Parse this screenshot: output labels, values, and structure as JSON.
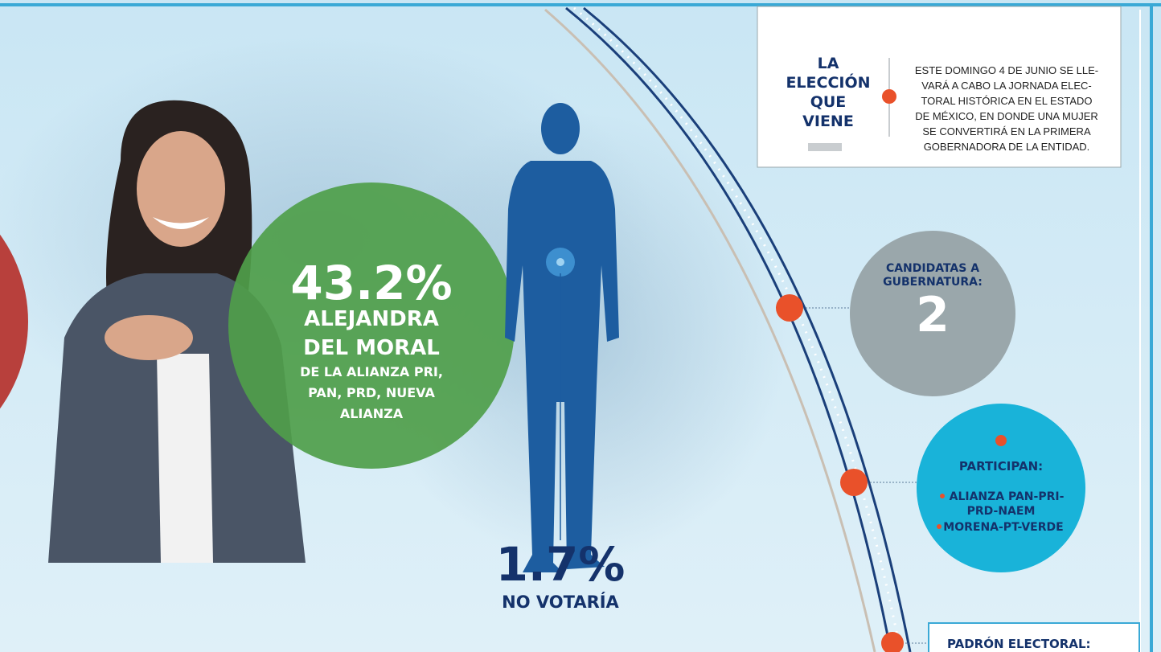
{
  "info_box": {
    "title_lines": [
      "LA",
      "ELECCIÓN",
      "QUE",
      "VIENE"
    ],
    "text_lines": [
      "ESTE DOMINGO 4 DE JUNIO SE LLE-",
      "VARÁ A CABO LA JORNADA ELEC-",
      "TORAL HISTÓRICA EN EL ESTADO",
      "DE MÉXICO, EN DONDE UNA MUJER",
      "SE CONVERTIRÁ EN LA PRIMERA",
      "GOBERNADORA DE LA ENTIDAD."
    ]
  },
  "candidate": {
    "percent": "43.2%",
    "name_lines": [
      "ALEJANDRA",
      "DEL MORAL"
    ],
    "detail_lines": [
      "DE LA ALIANZA PRI,",
      "PAN, PRD, NUEVA",
      "ALIANZA"
    ]
  },
  "no_vote": {
    "percent": "1.7%",
    "label": "NO VOTARÍA"
  },
  "candidates_count": {
    "label_lines": [
      "CANDIDATAS A",
      "GUBERNATURA:"
    ],
    "value": "2"
  },
  "participants": {
    "title": "PARTICIPAN:",
    "item_lines": [
      "ALIANZA PAN-PRI-",
      "PRD-NAEM",
      "MORENA-PT-VERDE"
    ]
  },
  "padron": {
    "title": "PADRÓN ELECTORAL:"
  }
}
